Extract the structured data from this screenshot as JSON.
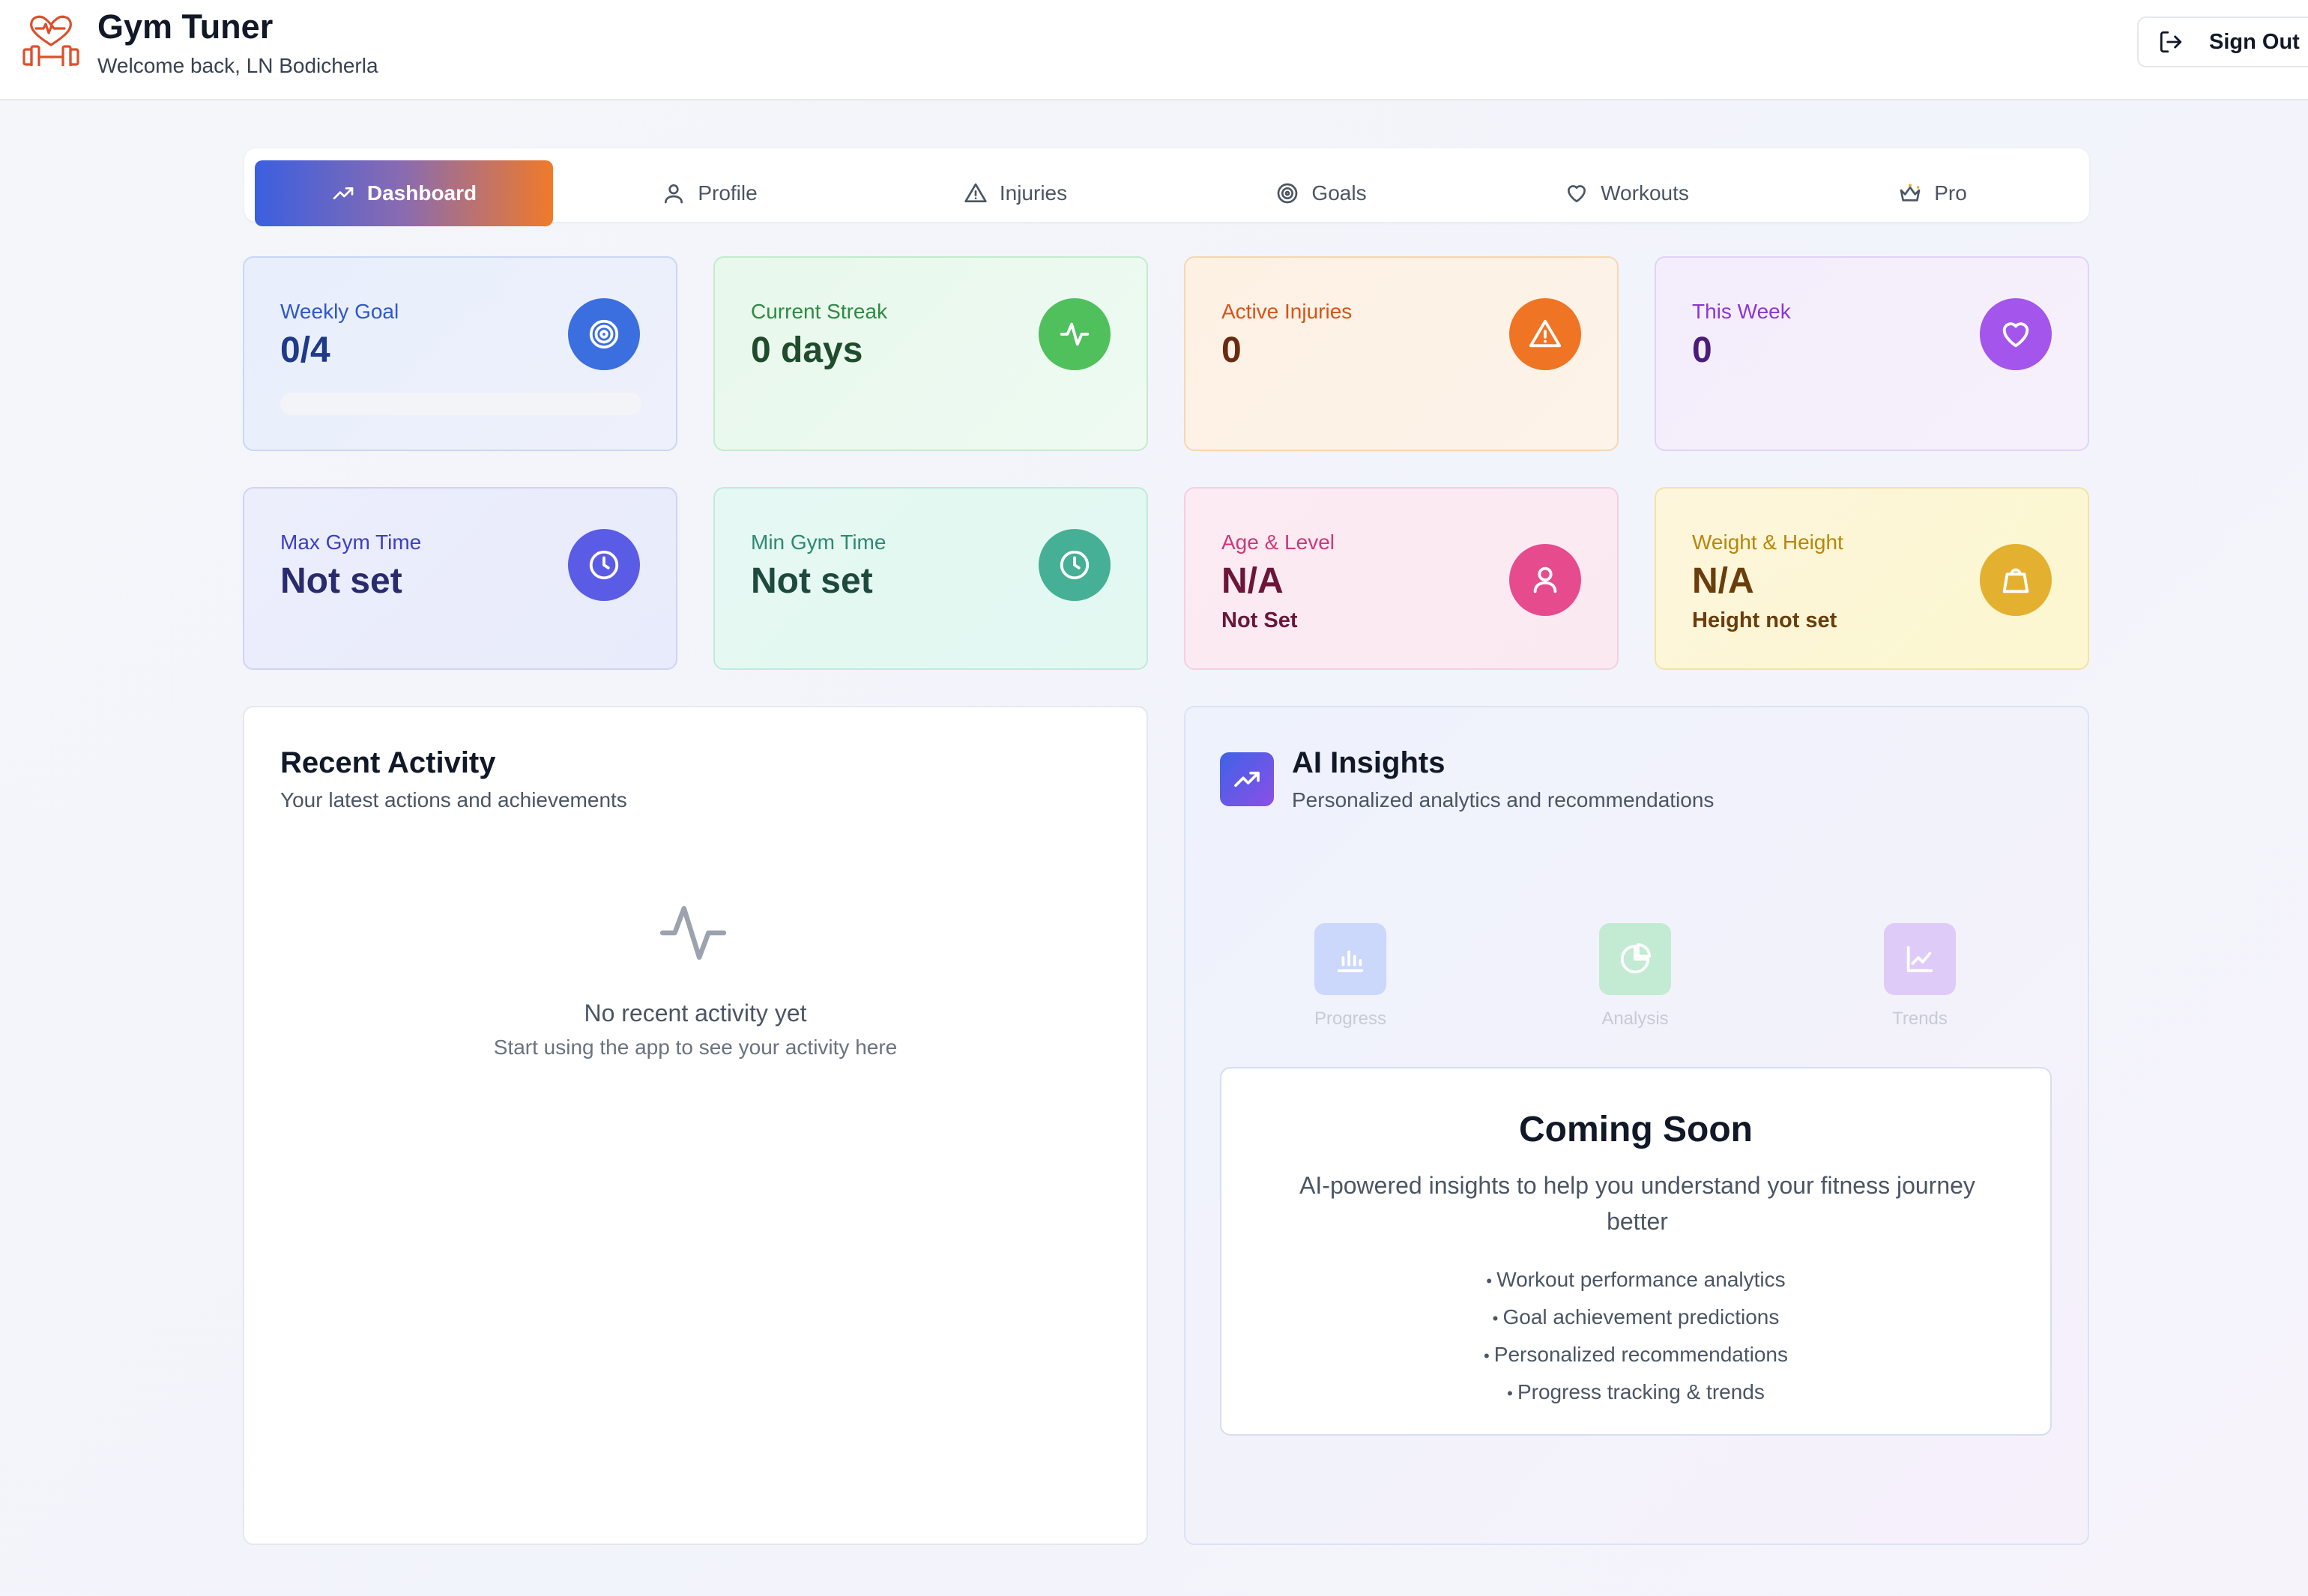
{
  "header": {
    "app_title": "Gym Tuner",
    "welcome": "Welcome back, LN Bodicherla",
    "sign_out_label": "Sign Out",
    "logo_icon": "heart-dumbbell-icon"
  },
  "tabs": [
    {
      "label": "Dashboard",
      "icon": "trending-up-icon",
      "active": true
    },
    {
      "label": "Profile",
      "icon": "user-icon",
      "active": false
    },
    {
      "label": "Injuries",
      "icon": "warning-triangle-icon",
      "active": false
    },
    {
      "label": "Goals",
      "icon": "target-icon",
      "active": false
    },
    {
      "label": "Workouts",
      "icon": "heart-icon",
      "active": false
    },
    {
      "label": "Pro",
      "icon": "crown-icon",
      "active": false
    }
  ],
  "stats": {
    "weekly_goal": {
      "label": "Weekly Goal",
      "value": "0/4",
      "progress": 0,
      "icon": "target-icon",
      "color": "#3b6fe0"
    },
    "current_streak": {
      "label": "Current Streak",
      "value": "0 days",
      "icon": "activity-icon",
      "color": "#4fc05c"
    },
    "active_injuries": {
      "label": "Active Injuries",
      "value": "0",
      "icon": "warning-triangle-icon",
      "color": "#ef7424"
    },
    "this_week": {
      "label": "This Week",
      "value": "0",
      "icon": "heart-icon",
      "color": "#a455eb"
    },
    "max_gym_time": {
      "label": "Max Gym Time",
      "value": "Not set",
      "icon": "clock-icon",
      "color": "#5b5ce6"
    },
    "min_gym_time": {
      "label": "Min Gym Time",
      "value": "Not set",
      "icon": "clock-icon",
      "color": "#45b095"
    },
    "age_level": {
      "label": "Age & Level",
      "value": "N/A",
      "sub": "Not Set",
      "icon": "user-icon",
      "color": "#e64c8d"
    },
    "weight_height": {
      "label": "Weight & Height",
      "value": "N/A",
      "sub": "Height not set",
      "icon": "weight-icon",
      "color": "#e3b030"
    }
  },
  "recent_activity": {
    "title": "Recent Activity",
    "subtitle": "Your latest actions and achievements",
    "empty_title": "No recent activity yet",
    "empty_subtitle": "Start using the app to see your activity here"
  },
  "ai_insights": {
    "title": "AI Insights",
    "subtitle": "Personalized analytics and recommendations",
    "features": [
      {
        "label": "Progress",
        "icon": "bar-chart-icon"
      },
      {
        "label": "Analysis",
        "icon": "pie-chart-icon"
      },
      {
        "label": "Trends",
        "icon": "line-chart-icon"
      }
    ],
    "coming_soon": {
      "title": "Coming Soon",
      "description": "AI-powered insights to help you understand your fitness journey better",
      "items": [
        "Workout performance analytics",
        "Goal achievement predictions",
        "Personalized recommendations",
        "Progress tracking & trends"
      ]
    }
  }
}
